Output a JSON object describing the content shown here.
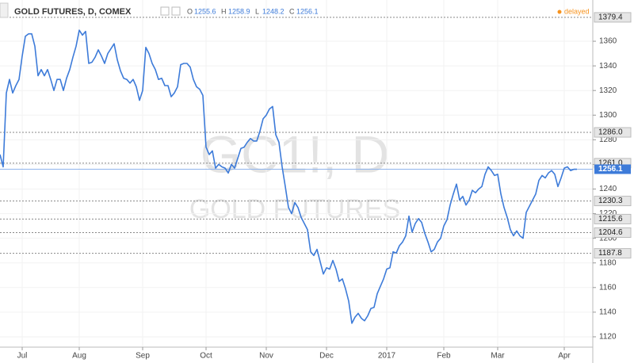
{
  "chart_data": {
    "type": "line",
    "title": "GOLD FUTURES, D, COMEX",
    "ohlc": [
      {
        "label": "O",
        "value": 1255.6
      },
      {
        "label": "H",
        "value": 1258.9
      },
      {
        "label": "L",
        "value": 1248.2
      },
      {
        "label": "C",
        "value": 1256.1
      }
    ],
    "status": "delayed",
    "watermark": [
      "GC1!, D",
      "GOLD FUTURES"
    ],
    "color": "#3d7bd9",
    "grid": true,
    "xlim": [
      0,
      187
    ],
    "xticks": [
      {
        "value": 7,
        "label": "Jul"
      },
      {
        "value": 25,
        "label": "Aug"
      },
      {
        "value": 45,
        "label": "Sep"
      },
      {
        "value": 65,
        "label": "Oct"
      },
      {
        "value": 84,
        "label": "Nov"
      },
      {
        "value": 103,
        "label": "Dec"
      },
      {
        "value": 122,
        "label": "2017"
      },
      {
        "value": 140,
        "label": "Feb"
      },
      {
        "value": 157,
        "label": "Mar"
      },
      {
        "value": 178,
        "label": "Apr"
      }
    ],
    "ylim": [
      1111.6,
      1393.5
    ],
    "yticks": [
      1120,
      1140,
      1160,
      1180,
      1200,
      1220,
      1240,
      1260,
      1280,
      1300,
      1320,
      1340,
      1360
    ],
    "levels": [
      1379.4,
      {
        "value": 1286,
        "label": "1286.0"
      },
      {
        "value": 1261,
        "label": "1261.0"
      },
      1230.3,
      1215.6,
      1204.6,
      1187.8
    ],
    "last_price": 1256.1,
    "values": [
      1268,
      1258,
      1318,
      1329,
      1318,
      1324,
      1329,
      1348,
      1364,
      1366,
      1366,
      1356,
      1332,
      1337,
      1332,
      1337,
      1329,
      1320,
      1329,
      1329,
      1320,
      1330,
      1337,
      1347,
      1356,
      1369,
      1365,
      1368,
      1342,
      1343,
      1347,
      1353,
      1348,
      1342,
      1350,
      1354,
      1358,
      1345,
      1336,
      1330,
      1329,
      1326,
      1329,
      1323,
      1312,
      1320,
      1355,
      1350,
      1342,
      1337,
      1329,
      1330,
      1324,
      1324,
      1315,
      1318,
      1323,
      1341,
      1342,
      1342,
      1339,
      1329,
      1323,
      1321,
      1316,
      1274,
      1268,
      1271,
      1257,
      1260,
      1258,
      1257,
      1253,
      1260,
      1257,
      1265,
      1273,
      1274,
      1278,
      1281,
      1279,
      1279,
      1287,
      1297,
      1300,
      1305,
      1307,
      1284,
      1278,
      1258,
      1242,
      1225,
      1220,
      1229,
      1225,
      1217,
      1212,
      1207,
      1189,
      1186,
      1191,
      1181,
      1171,
      1176,
      1175,
      1182,
      1175,
      1165,
      1167,
      1159,
      1149,
      1131,
      1136,
      1139,
      1135,
      1133,
      1137,
      1143,
      1144,
      1155,
      1161,
      1167,
      1175,
      1176,
      1189,
      1188,
      1194,
      1197,
      1202,
      1218,
      1205,
      1212,
      1216,
      1213,
      1204,
      1197,
      1189,
      1191,
      1197,
      1200,
      1210,
      1215,
      1227,
      1236,
      1244,
      1231,
      1234,
      1227,
      1231,
      1239,
      1237,
      1240,
      1242,
      1252,
      1258,
      1255,
      1251,
      1252,
      1236,
      1225,
      1217,
      1207,
      1202,
      1206,
      1202,
      1200,
      1221,
      1226,
      1231,
      1236,
      1247,
      1251,
      1249,
      1253,
      1255,
      1252,
      1242,
      1249,
      1257,
      1258,
      1255,
      1256,
      1256
    ]
  }
}
